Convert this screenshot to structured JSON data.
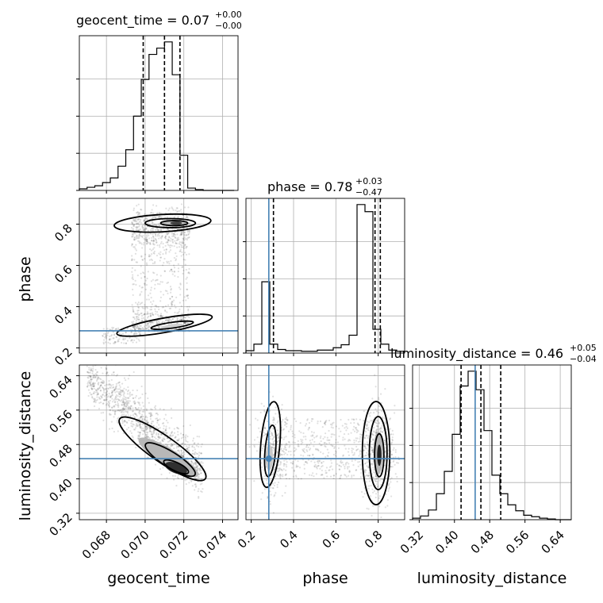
{
  "chart_data": {
    "type": "corner",
    "parameters": [
      "geocent_time",
      "phase",
      "luminosity_distance"
    ],
    "titles": [
      {
        "param": "geocent_time",
        "label": "geocent_time = 0.07",
        "upper": "+0.00",
        "lower": "−0.00"
      },
      {
        "param": "phase",
        "label": "phase = 0.78",
        "upper": "+0.03",
        "lower": "−0.47"
      },
      {
        "param": "luminosity_distance",
        "label": "luminosity_distance = 0.46",
        "upper": "+0.05",
        "lower": "−0.04"
      }
    ],
    "axis_labels": {
      "geocent_time": "geocent_time",
      "phase": "phase",
      "luminosity_distance": "luminosity_distance"
    },
    "ranges": {
      "geocent_time": [
        0.0666,
        0.0748
      ],
      "phase": [
        0.175,
        0.925
      ],
      "luminosity_distance": [
        0.305,
        0.665
      ]
    },
    "ticks": {
      "geocent_time": [
        0.068,
        0.07,
        0.072,
        0.074
      ],
      "phase": [
        0.2,
        0.4,
        0.6,
        0.8
      ],
      "luminosity_distance": [
        0.32,
        0.4,
        0.48,
        0.56,
        0.64
      ]
    },
    "tick_labels": {
      "geocent_time": [
        "0.068",
        "0.070",
        "0.072",
        "0.074"
      ],
      "phase": [
        "0.2",
        "0.4",
        "0.6",
        "0.8"
      ],
      "luminosity_distance": [
        "0.32",
        "0.40",
        "0.48",
        "0.56",
        "0.64"
      ]
    },
    "quantiles": {
      "geocent_time": [
        0.0699,
        0.071,
        0.0718
      ],
      "phase": [
        0.305,
        0.785,
        0.81
      ],
      "luminosity_distance": [
        0.415,
        0.46,
        0.505
      ]
    },
    "truths": {
      "geocent_time": null,
      "phase": 0.283,
      "luminosity_distance": 0.447
    },
    "histograms": {
      "geocent_time": {
        "edges_start": 0.0666,
        "bin_width": 0.0004,
        "counts": [
          2,
          4,
          6,
          10,
          16,
          31,
          52,
          95,
          142,
          174,
          182,
          190,
          148,
          45,
          3,
          1,
          0,
          0,
          0,
          0
        ]
      },
      "phase": {
        "edges_start": 0.175,
        "bin_width": 0.0375,
        "counts": [
          4,
          15,
          120,
          15,
          6,
          4,
          4,
          3,
          3,
          5,
          5,
          9,
          14,
          30,
          250,
          238,
          40,
          15,
          5,
          3
        ]
      },
      "luminosity_distance": {
        "edges_start": 0.305,
        "bin_width": 0.018,
        "counts": [
          2,
          5,
          13,
          35,
          65,
          115,
          180,
          200,
          175,
          120,
          60,
          35,
          20,
          12,
          6,
          4,
          2,
          1,
          0,
          0
        ]
      }
    },
    "truth_color": "#4682b4",
    "line_color": "#000000",
    "grid": true
  }
}
